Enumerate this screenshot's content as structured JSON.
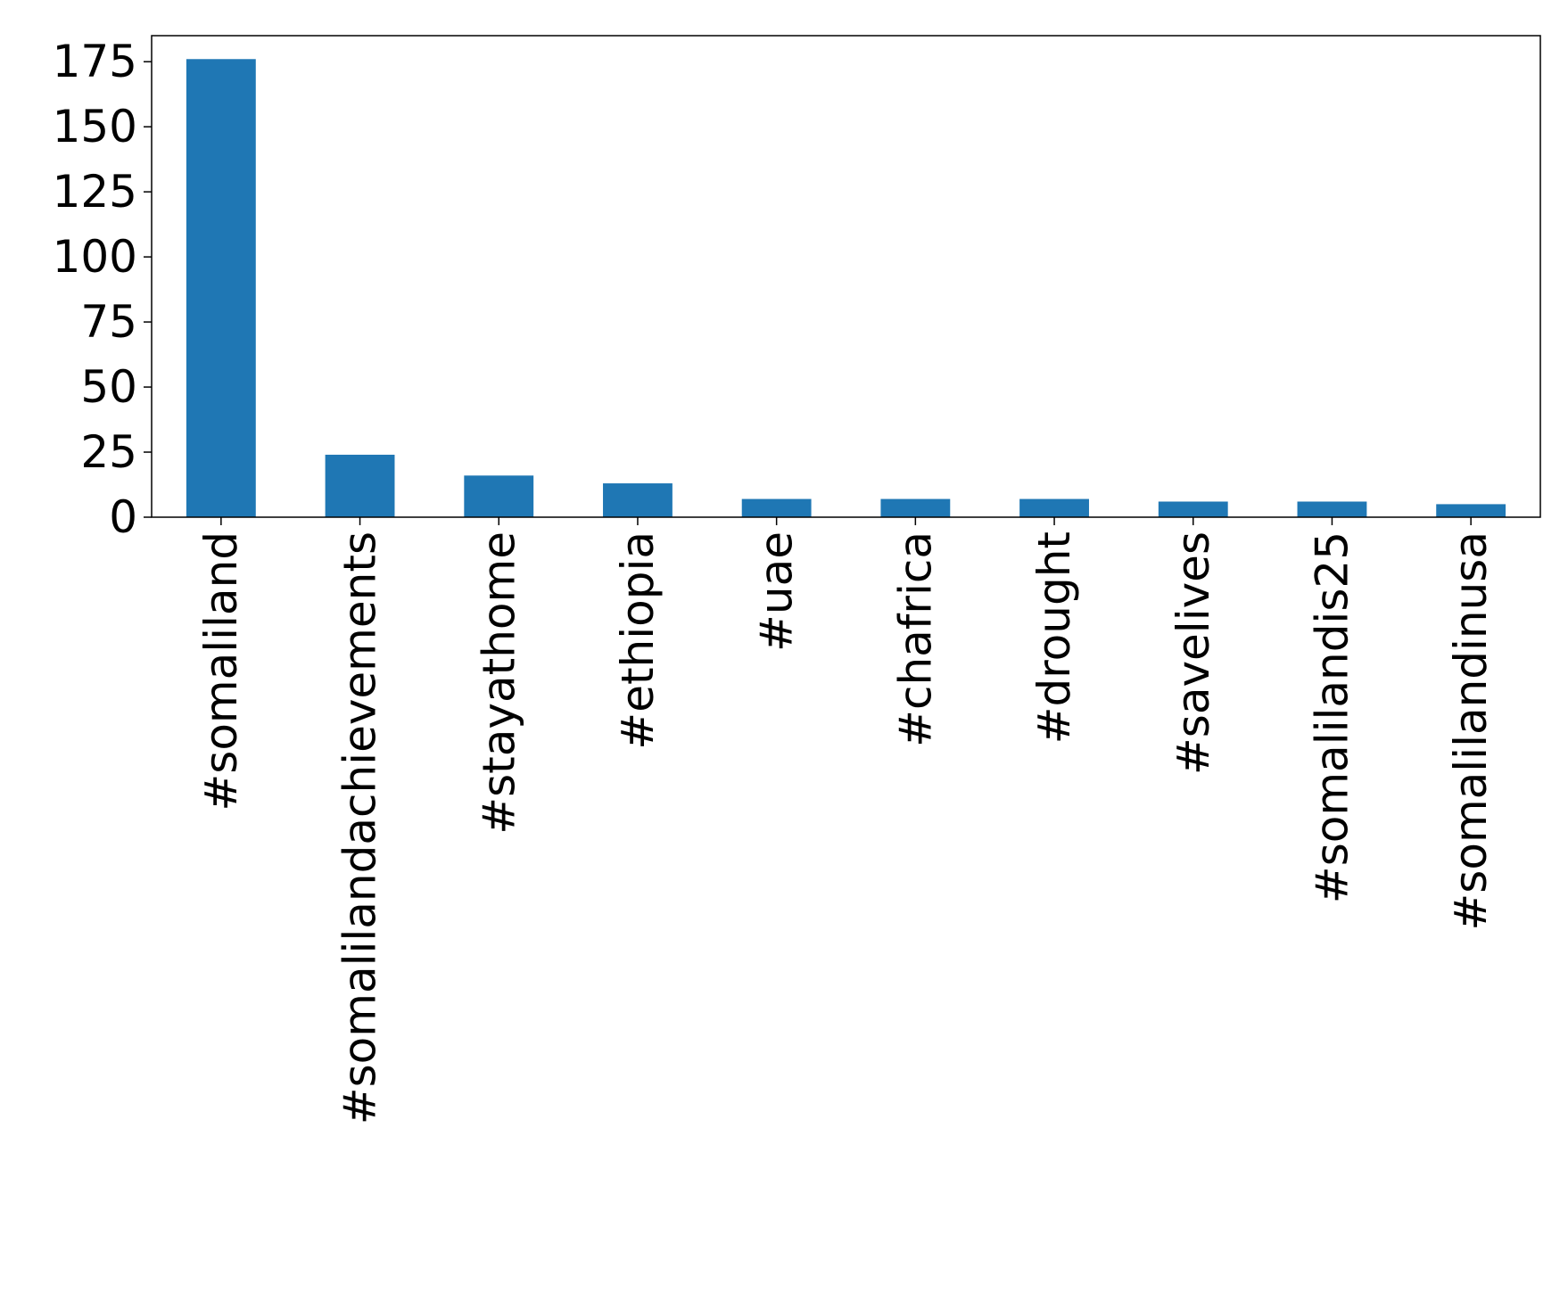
{
  "chart_data": {
    "type": "bar",
    "categories": [
      "#somaliland",
      "#somalilandachievements",
      "#stayathome",
      "#ethiopia",
      "#uae",
      "#chafrica",
      "#drought",
      "#savelives",
      "#somalilandis25",
      "#somalilandinusa"
    ],
    "values": [
      176,
      24,
      16,
      13,
      7,
      7,
      7,
      6,
      6,
      5
    ],
    "title": "",
    "xlabel": "",
    "ylabel": "",
    "ylim": [
      0,
      185
    ],
    "yticks": [
      0,
      25,
      50,
      75,
      100,
      125,
      150,
      175
    ],
    "ytick_labels": [
      "0",
      "25",
      "50",
      "75",
      "100",
      "125",
      "150",
      "175"
    ],
    "grid": false,
    "legend": "none",
    "bar_color": "#1f77b4"
  }
}
